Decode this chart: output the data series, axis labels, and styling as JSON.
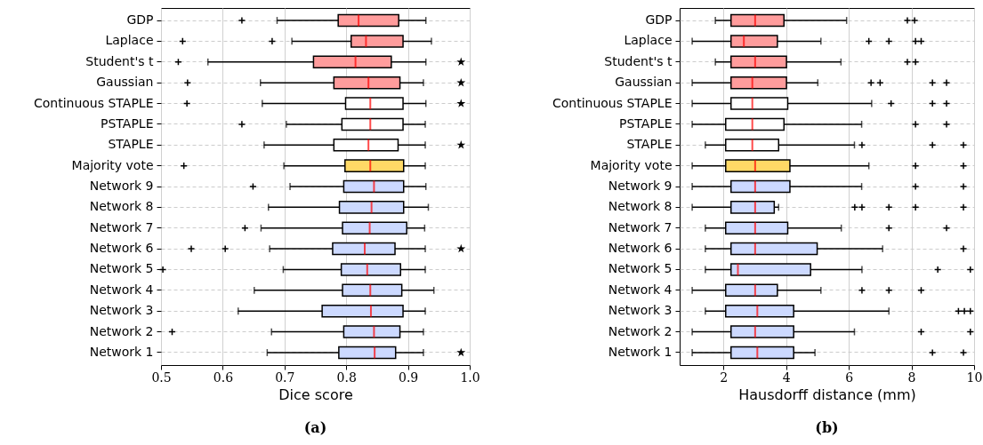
{
  "chart_data": [
    {
      "type": "box",
      "orientation": "horizontal",
      "title": "(a)",
      "xlabel": "Dice score",
      "xlim": [
        0.5,
        1.0
      ],
      "xticks": [
        0.5,
        0.6,
        0.7,
        0.8,
        0.9,
        {
          "value": 1.0,
          "label": "1.0"
        }
      ],
      "grid": true,
      "categories": [
        "GDP",
        "Laplace",
        "Student's t",
        "Gaussian",
        "Continuous STAPLE",
        "PSTAPLE",
        "STAPLE",
        "Majority vote",
        "Network 9",
        "Network 8",
        "Network 7",
        "Network 6",
        "Network 5",
        "Network 4",
        "Network 3",
        "Network 2",
        "Network 1"
      ],
      "series": [
        {
          "type": "box",
          "colors": [
            "#ff9c9c",
            "#ff9c9c",
            "#ff9c9c",
            "#ff9c9c",
            "#ffffff",
            "#ffffff",
            "#ffffff",
            "#ffd966",
            "#ccd9ff",
            "#ccd9ff",
            "#ccd9ff",
            "#ccd9ff",
            "#ccd9ff",
            "#ccd9ff",
            "#ccd9ff",
            "#ccd9ff",
            "#ccd9ff"
          ],
          "boxes": [
            {
              "low": 0.688,
              "q1": 0.787,
              "median": 0.82,
              "q3": 0.885,
              "high": 0.929,
              "outliers": [
                0.631
              ]
            },
            {
              "low": 0.712,
              "q1": 0.808,
              "median": 0.832,
              "q3": 0.892,
              "high": 0.938,
              "outliers": [
                0.535,
                0.68
              ]
            },
            {
              "low": 0.576,
              "q1": 0.747,
              "median": 0.815,
              "q3": 0.873,
              "high": 0.929,
              "outliers": [
                0.528
              ]
            },
            {
              "low": 0.661,
              "q1": 0.78,
              "median": 0.836,
              "q3": 0.887,
              "high": 0.925,
              "outliers": [
                0.543
              ]
            },
            {
              "low": 0.664,
              "q1": 0.799,
              "median": 0.839,
              "q3": 0.892,
              "high": 0.929,
              "outliers": [
                0.542
              ]
            },
            {
              "low": 0.703,
              "q1": 0.793,
              "median": 0.839,
              "q3": 0.892,
              "high": 0.928,
              "outliers": [
                0.631
              ]
            },
            {
              "low": 0.667,
              "q1": 0.78,
              "median": 0.836,
              "q3": 0.884,
              "high": 0.928
            },
            {
              "low": 0.699,
              "q1": 0.798,
              "median": 0.839,
              "q3": 0.893,
              "high": 0.928,
              "outliers": [
                0.537
              ]
            },
            {
              "low": 0.709,
              "q1": 0.796,
              "median": 0.845,
              "q3": 0.893,
              "high": 0.929,
              "outliers": [
                0.649
              ]
            },
            {
              "low": 0.674,
              "q1": 0.789,
              "median": 0.841,
              "q3": 0.893,
              "high": 0.933
            },
            {
              "low": 0.662,
              "q1": 0.794,
              "median": 0.838,
              "q3": 0.898,
              "high": 0.927,
              "outliers": [
                0.636
              ]
            },
            {
              "low": 0.676,
              "q1": 0.778,
              "median": 0.83,
              "q3": 0.879,
              "high": 0.928,
              "outliers": [
                0.549,
                0.604
              ]
            },
            {
              "low": 0.698,
              "q1": 0.792,
              "median": 0.834,
              "q3": 0.888,
              "high": 0.928,
              "outliers": [
                0.503
              ]
            },
            {
              "low": 0.651,
              "q1": 0.794,
              "median": 0.839,
              "q3": 0.89,
              "high": 0.942
            },
            {
              "low": 0.625,
              "q1": 0.761,
              "median": 0.84,
              "q3": 0.892,
              "high": 0.928
            },
            {
              "low": 0.679,
              "q1": 0.796,
              "median": 0.845,
              "q3": 0.887,
              "high": 0.925,
              "outliers": [
                0.518
              ]
            },
            {
              "low": 0.672,
              "q1": 0.788,
              "median": 0.846,
              "q3": 0.88,
              "high": 0.925
            }
          ]
        },
        {
          "type": "scatter",
          "marker": "star",
          "color": "#000000",
          "values": [
            null,
            null,
            0.986,
            0.986,
            0.986,
            null,
            0.986,
            null,
            null,
            null,
            null,
            0.986,
            null,
            null,
            null,
            null,
            0.986
          ]
        }
      ]
    },
    {
      "type": "box",
      "orientation": "horizontal",
      "title": "(b)",
      "xlabel": "Hausdorff distance (mm)",
      "xlim": [
        0.6,
        10
      ],
      "xticks": [
        2,
        4,
        6,
        8,
        10
      ],
      "grid": true,
      "categories": [
        "GDP",
        "Laplace",
        "Student's t",
        "Gaussian",
        "Continuous STAPLE",
        "PSTAPLE",
        "STAPLE",
        "Majority vote",
        "Network 9",
        "Network 8",
        "Network 7",
        "Network 6",
        "Network 5",
        "Network 4",
        "Network 3",
        "Network 2",
        "Network 1"
      ],
      "series": [
        {
          "type": "box",
          "colors": [
            "#ff9c9c",
            "#ff9c9c",
            "#ff9c9c",
            "#ff9c9c",
            "#ffffff",
            "#ffffff",
            "#ffffff",
            "#ffd966",
            "#ccd9ff",
            "#ccd9ff",
            "#ccd9ff",
            "#ccd9ff",
            "#ccd9ff",
            "#ccd9ff",
            "#ccd9ff",
            "#ccd9ff",
            "#ccd9ff"
          ],
          "boxes": [
            {
              "low": 1.74,
              "q1": 2.24,
              "median": 3.01,
              "q3": 3.93,
              "high": 5.93,
              "outliers": [
                7.87,
                8.1
              ]
            },
            {
              "low": 1.0,
              "q1": 2.24,
              "median": 2.65,
              "q3": 3.72,
              "high": 5.11,
              "outliers": [
                6.64,
                7.28,
                8.13,
                8.31
              ]
            },
            {
              "low": 1.74,
              "q1": 2.24,
              "median": 3.01,
              "q3": 4.01,
              "high": 5.75,
              "outliers": [
                7.87,
                8.13
              ]
            },
            {
              "low": 1.0,
              "q1": 2.24,
              "median": 2.92,
              "q3": 4.01,
              "high": 5.01,
              "outliers": [
                6.71,
                7.0,
                8.67,
                9.12
              ]
            },
            {
              "low": 1.0,
              "q1": 2.24,
              "median": 2.92,
              "q3": 4.05,
              "high": 6.73,
              "outliers": [
                7.35,
                8.67,
                9.12
              ]
            },
            {
              "low": 1.0,
              "q1": 2.07,
              "median": 2.92,
              "q3": 3.93,
              "high": 6.41,
              "outliers": [
                8.13,
                9.12
              ]
            },
            {
              "low": 1.42,
              "q1": 2.07,
              "median": 2.92,
              "q3": 3.76,
              "high": 6.18,
              "outliers": [
                6.42,
                8.67,
                9.66
              ]
            },
            {
              "low": 1.0,
              "q1": 2.07,
              "median": 3.01,
              "q3": 4.12,
              "high": 6.64,
              "outliers": [
                8.13,
                9.66
              ]
            },
            {
              "low": 1.0,
              "q1": 2.24,
              "median": 3.01,
              "q3": 4.12,
              "high": 6.41,
              "outliers": [
                8.13,
                9.66
              ]
            },
            {
              "low": 1.0,
              "q1": 2.24,
              "median": 3.01,
              "q3": 3.62,
              "high": 3.76,
              "outliers": [
                6.19,
                6.42,
                7.28,
                8.13,
                9.66
              ]
            },
            {
              "low": 1.42,
              "q1": 2.07,
              "median": 3.01,
              "q3": 4.05,
              "high": 5.76,
              "outliers": [
                7.28,
                9.12
              ]
            },
            {
              "low": 1.42,
              "q1": 2.24,
              "median": 3.01,
              "q3": 4.99,
              "high": 7.08,
              "outliers": [
                9.66
              ]
            },
            {
              "low": 1.42,
              "q1": 2.24,
              "median": 2.46,
              "q3": 4.78,
              "high": 6.42,
              "outliers": [
                8.84,
                9.88
              ]
            },
            {
              "low": 1.0,
              "q1": 2.07,
              "median": 3.01,
              "q3": 3.72,
              "high": 5.11,
              "outliers": [
                6.42,
                7.28,
                8.31
              ]
            },
            {
              "low": 1.42,
              "q1": 2.07,
              "median": 3.08,
              "q3": 4.24,
              "high": 7.28,
              "outliers": [
                9.5,
                9.69,
                9.88
              ]
            },
            {
              "low": 1.0,
              "q1": 2.24,
              "median": 3.01,
              "q3": 4.24,
              "high": 6.18,
              "outliers": [
                8.31,
                9.88
              ]
            },
            {
              "low": 1.0,
              "q1": 2.24,
              "median": 3.08,
              "q3": 4.24,
              "high": 4.92,
              "outliers": [
                8.67,
                9.66
              ]
            }
          ]
        }
      ]
    }
  ]
}
